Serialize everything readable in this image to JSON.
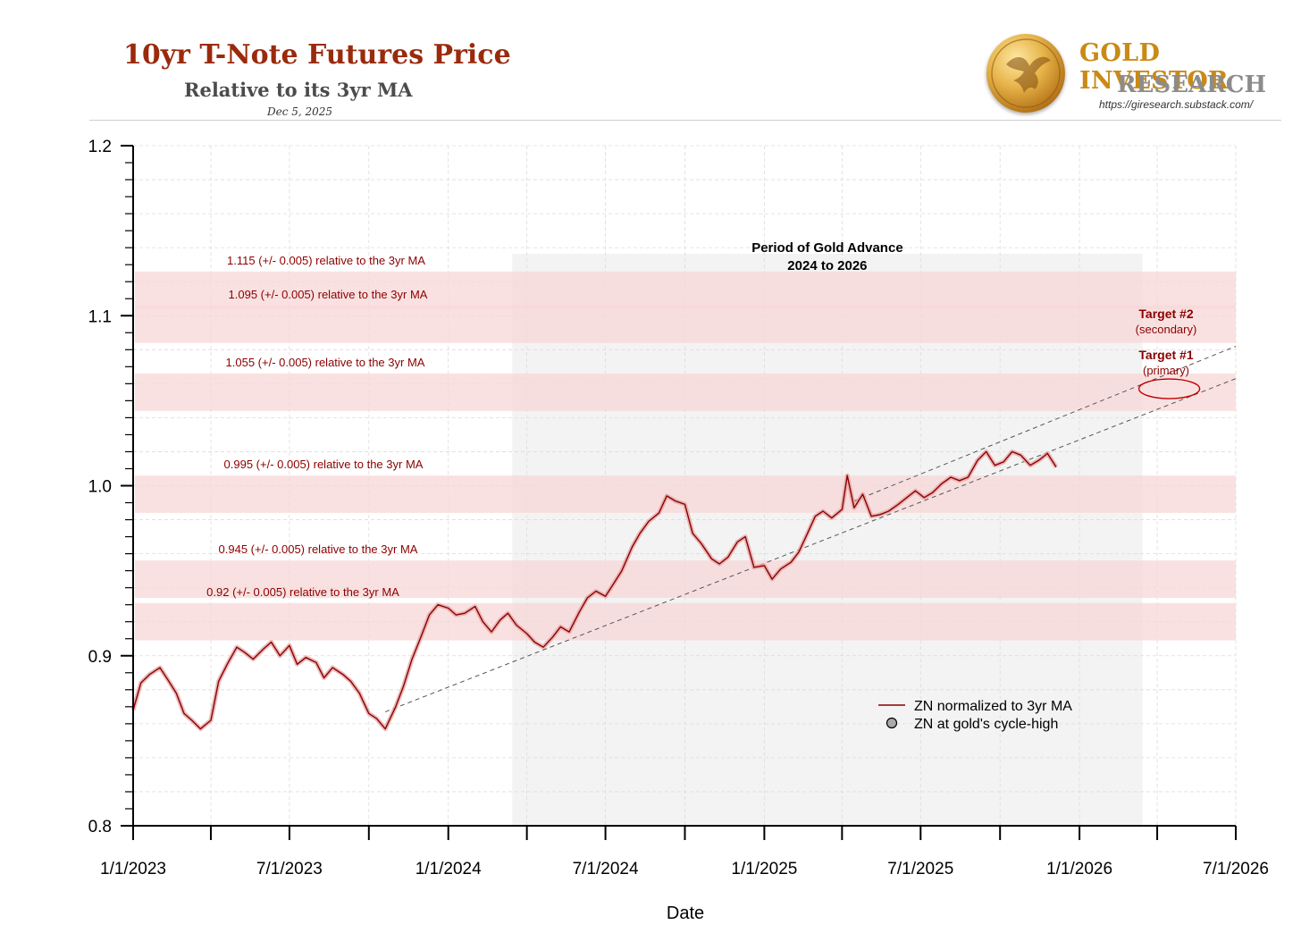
{
  "header": {
    "title": "10yr T-Note Futures Price",
    "subtitle": "Relative to its 3yr MA",
    "date": "Dec 5, 2025"
  },
  "brand": {
    "line1": "GOLD INVESTOR",
    "line2": "RESEARCH",
    "url": "https://giresearch.substack.com/"
  },
  "colors": {
    "series": "#8b0000",
    "band": "#f8d7d7",
    "band_label": "#8b0000",
    "shade": "#f3f3f3"
  },
  "chart_data": {
    "type": "line",
    "xlabel": "Date",
    "ylabel": "",
    "ylim": [
      0.8,
      1.2
    ],
    "yticks": [
      "0.8",
      "0.9",
      "1.0",
      "1.1",
      "1.2"
    ],
    "xticks": [
      "1/1/2023",
      "7/1/2023",
      "1/1/2024",
      "7/1/2024",
      "1/1/2025",
      "7/1/2025",
      "1/1/2026",
      "7/1/2026"
    ],
    "xlim": [
      "2023-01-01",
      "2026-07-01"
    ],
    "grid": true,
    "shaded_period": {
      "start": "2024-03-15",
      "end": "2026-03-15",
      "label1": "Period of Gold Advance",
      "label2": "2024 to 2026"
    },
    "bands": [
      {
        "center": 1.115,
        "width": 0.005,
        "label": "1.115 (+/- 0.005) relative to the 3yr MA"
      },
      {
        "center": 1.095,
        "width": 0.005,
        "label": "1.095 (+/- 0.005) relative to the 3yr MA"
      },
      {
        "center": 1.055,
        "width": 0.005,
        "label": "1.055 (+/- 0.005) relative to the 3yr MA"
      },
      {
        "center": 0.995,
        "width": 0.005,
        "label": "0.995 (+/- 0.005) relative to the 3yr MA"
      },
      {
        "center": 0.945,
        "width": 0.005,
        "label": "0.945 (+/- 0.005) relative to the 3yr MA"
      },
      {
        "center": 0.92,
        "width": 0.005,
        "label": "0.92 (+/- 0.005) relative to the 3yr MA"
      }
    ],
    "trendlines": [
      {
        "from": [
          "2023-10-20",
          0.867
        ],
        "to": [
          "2026-07-01",
          1.063
        ]
      },
      {
        "from": [
          "2025-04-15",
          0.991
        ],
        "to": [
          "2026-07-01",
          1.082
        ]
      }
    ],
    "targets": [
      {
        "title": "Target #2",
        "sub": "(secondary)"
      },
      {
        "title": "Target #1",
        "sub": "(primary)"
      }
    ],
    "target_ellipse": {
      "date": "2026-04-15",
      "value": 1.057
    },
    "legend": {
      "position": "lower-right",
      "line_label": "ZN normalized to 3yr MA",
      "marker_label": "ZN at gold's cycle-high"
    },
    "series": [
      {
        "name": "ZN normalized to 3yr MA",
        "points": [
          [
            "2023-01-01",
            0.868
          ],
          [
            "2023-01-10",
            0.884
          ],
          [
            "2023-01-20",
            0.889
          ],
          [
            "2023-02-01",
            0.893
          ],
          [
            "2023-02-10",
            0.886
          ],
          [
            "2023-02-20",
            0.878
          ],
          [
            "2023-03-01",
            0.866
          ],
          [
            "2023-03-10",
            0.862
          ],
          [
            "2023-03-20",
            0.857
          ],
          [
            "2023-04-01",
            0.862
          ],
          [
            "2023-04-10",
            0.885
          ],
          [
            "2023-04-20",
            0.895
          ],
          [
            "2023-05-01",
            0.905
          ],
          [
            "2023-05-10",
            0.902
          ],
          [
            "2023-05-20",
            0.898
          ],
          [
            "2023-06-01",
            0.904
          ],
          [
            "2023-06-10",
            0.908
          ],
          [
            "2023-06-20",
            0.9
          ],
          [
            "2023-07-01",
            0.906
          ],
          [
            "2023-07-10",
            0.895
          ],
          [
            "2023-07-20",
            0.899
          ],
          [
            "2023-08-01",
            0.896
          ],
          [
            "2023-08-10",
            0.887
          ],
          [
            "2023-08-20",
            0.893
          ],
          [
            "2023-09-01",
            0.889
          ],
          [
            "2023-09-10",
            0.885
          ],
          [
            "2023-09-20",
            0.878
          ],
          [
            "2023-10-01",
            0.866
          ],
          [
            "2023-10-10",
            0.863
          ],
          [
            "2023-10-20",
            0.857
          ],
          [
            "2023-11-01",
            0.87
          ],
          [
            "2023-11-10",
            0.882
          ],
          [
            "2023-11-20",
            0.898
          ],
          [
            "2023-12-01",
            0.912
          ],
          [
            "2023-12-10",
            0.924
          ],
          [
            "2023-12-20",
            0.93
          ],
          [
            "2024-01-01",
            0.928
          ],
          [
            "2024-01-10",
            0.924
          ],
          [
            "2024-01-20",
            0.925
          ],
          [
            "2024-02-01",
            0.929
          ],
          [
            "2024-02-10",
            0.92
          ],
          [
            "2024-02-20",
            0.914
          ],
          [
            "2024-03-01",
            0.921
          ],
          [
            "2024-03-10",
            0.925
          ],
          [
            "2024-03-20",
            0.918
          ],
          [
            "2024-04-01",
            0.913
          ],
          [
            "2024-04-10",
            0.908
          ],
          [
            "2024-04-20",
            0.905
          ],
          [
            "2024-05-01",
            0.911
          ],
          [
            "2024-05-10",
            0.917
          ],
          [
            "2024-05-20",
            0.914
          ],
          [
            "2024-06-01",
            0.926
          ],
          [
            "2024-06-10",
            0.934
          ],
          [
            "2024-06-20",
            0.938
          ],
          [
            "2024-07-01",
            0.935
          ],
          [
            "2024-07-10",
            0.942
          ],
          [
            "2024-07-20",
            0.95
          ],
          [
            "2024-08-01",
            0.964
          ],
          [
            "2024-08-10",
            0.972
          ],
          [
            "2024-08-20",
            0.979
          ],
          [
            "2024-09-01",
            0.984
          ],
          [
            "2024-09-10",
            0.994
          ],
          [
            "2024-09-20",
            0.991
          ],
          [
            "2024-10-01",
            0.989
          ],
          [
            "2024-10-10",
            0.972
          ],
          [
            "2024-10-20",
            0.966
          ],
          [
            "2024-11-01",
            0.957
          ],
          [
            "2024-11-10",
            0.954
          ],
          [
            "2024-11-20",
            0.958
          ],
          [
            "2024-12-01",
            0.967
          ],
          [
            "2024-12-10",
            0.97
          ],
          [
            "2024-12-20",
            0.952
          ],
          [
            "2025-01-01",
            0.953
          ],
          [
            "2025-01-10",
            0.945
          ],
          [
            "2025-01-20",
            0.951
          ],
          [
            "2025-02-01",
            0.955
          ],
          [
            "2025-02-10",
            0.961
          ],
          [
            "2025-02-20",
            0.972
          ],
          [
            "2025-03-01",
            0.982
          ],
          [
            "2025-03-10",
            0.985
          ],
          [
            "2025-03-20",
            0.981
          ],
          [
            "2025-04-01",
            0.986
          ],
          [
            "2025-04-07",
            1.006
          ],
          [
            "2025-04-15",
            0.987
          ],
          [
            "2025-04-25",
            0.995
          ],
          [
            "2025-05-05",
            0.982
          ],
          [
            "2025-05-15",
            0.983
          ],
          [
            "2025-05-25",
            0.985
          ],
          [
            "2025-06-05",
            0.989
          ],
          [
            "2025-06-15",
            0.993
          ],
          [
            "2025-06-25",
            0.997
          ],
          [
            "2025-07-05",
            0.993
          ],
          [
            "2025-07-15",
            0.996
          ],
          [
            "2025-07-25",
            1.001
          ],
          [
            "2025-08-05",
            1.005
          ],
          [
            "2025-08-15",
            1.003
          ],
          [
            "2025-08-25",
            1.005
          ],
          [
            "2025-09-05",
            1.015
          ],
          [
            "2025-09-15",
            1.02
          ],
          [
            "2025-09-25",
            1.012
          ],
          [
            "2025-10-05",
            1.014
          ],
          [
            "2025-10-15",
            1.02
          ],
          [
            "2025-10-25",
            1.018
          ],
          [
            "2025-11-05",
            1.012
          ],
          [
            "2025-11-15",
            1.015
          ],
          [
            "2025-11-25",
            1.019
          ],
          [
            "2025-12-05",
            1.011
          ]
        ]
      }
    ]
  }
}
